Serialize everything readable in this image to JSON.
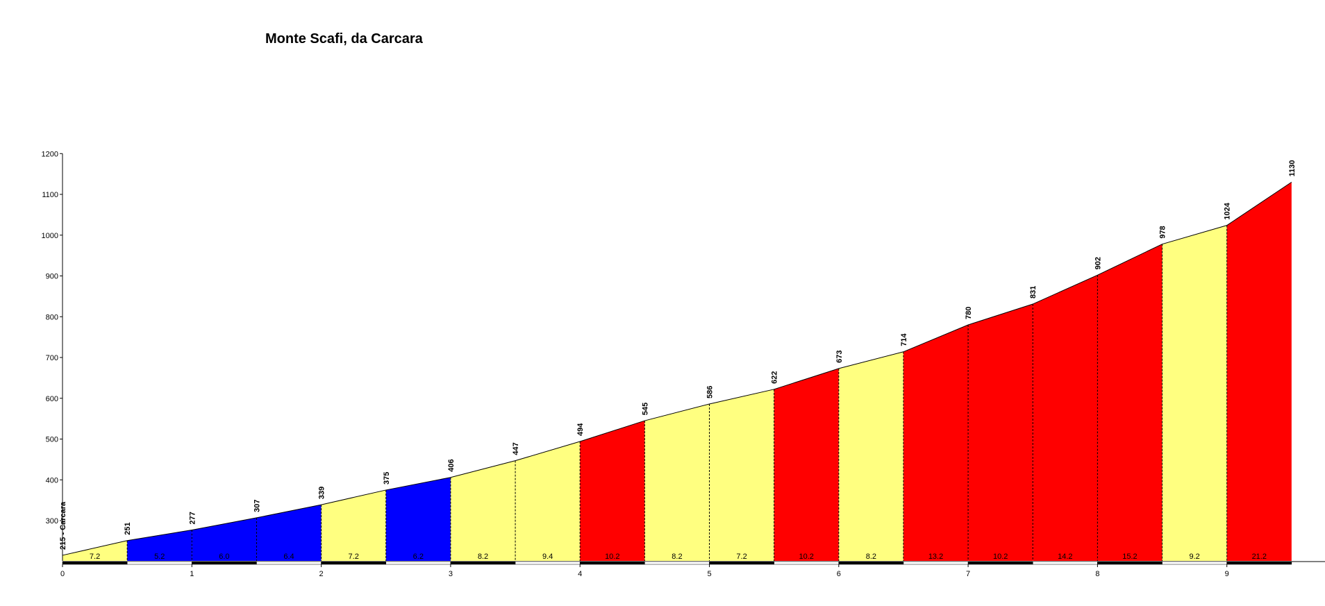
{
  "chart_data": {
    "type": "area",
    "title": "Monte Scafi, da Carcara",
    "xlabel": "",
    "ylabel": "",
    "xlim": [
      0,
      9.5
    ],
    "ylim": [
      200,
      1200
    ],
    "x_ticks": [
      "0",
      "1",
      "2",
      "3",
      "4",
      "5",
      "6",
      "7",
      "8",
      "9"
    ],
    "y_ticks": [
      "300",
      "400",
      "500",
      "600",
      "700",
      "800",
      "900",
      "1000",
      "1100",
      "1200"
    ],
    "points": [
      {
        "km": 0.0,
        "elev": 215,
        "label": "215 - Carcara"
      },
      {
        "km": 0.5,
        "elev": 251,
        "label": "251"
      },
      {
        "km": 1.0,
        "elev": 277,
        "label": "277"
      },
      {
        "km": 1.5,
        "elev": 307,
        "label": "307"
      },
      {
        "km": 2.0,
        "elev": 339,
        "label": "339"
      },
      {
        "km": 2.5,
        "elev": 375,
        "label": "375"
      },
      {
        "km": 3.0,
        "elev": 406,
        "label": "406"
      },
      {
        "km": 3.5,
        "elev": 447,
        "label": "447"
      },
      {
        "km": 4.0,
        "elev": 494,
        "label": "494"
      },
      {
        "km": 4.5,
        "elev": 545,
        "label": "545"
      },
      {
        "km": 5.0,
        "elev": 586,
        "label": "586"
      },
      {
        "km": 5.5,
        "elev": 622,
        "label": "622"
      },
      {
        "km": 6.0,
        "elev": 673,
        "label": "673"
      },
      {
        "km": 6.5,
        "elev": 714,
        "label": "714"
      },
      {
        "km": 7.0,
        "elev": 780,
        "label": "780"
      },
      {
        "km": 7.5,
        "elev": 831,
        "label": "831"
      },
      {
        "km": 8.0,
        "elev": 902,
        "label": "902"
      },
      {
        "km": 8.5,
        "elev": 978,
        "label": "978"
      },
      {
        "km": 9.0,
        "elev": 1024,
        "label": "1024"
      },
      {
        "km": 9.5,
        "elev": 1130,
        "label": "1130"
      }
    ],
    "segments": [
      {
        "grade": "7.2",
        "color": "#ffff80"
      },
      {
        "grade": "5.2",
        "color": "#0000ff"
      },
      {
        "grade": "6.0",
        "color": "#0000ff"
      },
      {
        "grade": "6.4",
        "color": "#0000ff"
      },
      {
        "grade": "7.2",
        "color": "#ffff80"
      },
      {
        "grade": "6.2",
        "color": "#0000ff"
      },
      {
        "grade": "8.2",
        "color": "#ffff80"
      },
      {
        "grade": "9.4",
        "color": "#ffff80"
      },
      {
        "grade": "10.2",
        "color": "#ff0000"
      },
      {
        "grade": "8.2",
        "color": "#ffff80"
      },
      {
        "grade": "7.2",
        "color": "#ffff80"
      },
      {
        "grade": "10.2",
        "color": "#ff0000"
      },
      {
        "grade": "8.2",
        "color": "#ffff80"
      },
      {
        "grade": "13.2",
        "color": "#ff0000"
      },
      {
        "grade": "10.2",
        "color": "#ff0000"
      },
      {
        "grade": "14.2",
        "color": "#ff0000"
      },
      {
        "grade": "15.2",
        "color": "#ff0000"
      },
      {
        "grade": "9.2",
        "color": "#ffff80"
      },
      {
        "grade": "21.2",
        "color": "#ff0000"
      }
    ],
    "colors": {
      "yellow": "#ffff80",
      "blue": "#0000ff",
      "red": "#ff0000",
      "axis": "#000000",
      "outline": "#000000"
    },
    "grid": false
  }
}
